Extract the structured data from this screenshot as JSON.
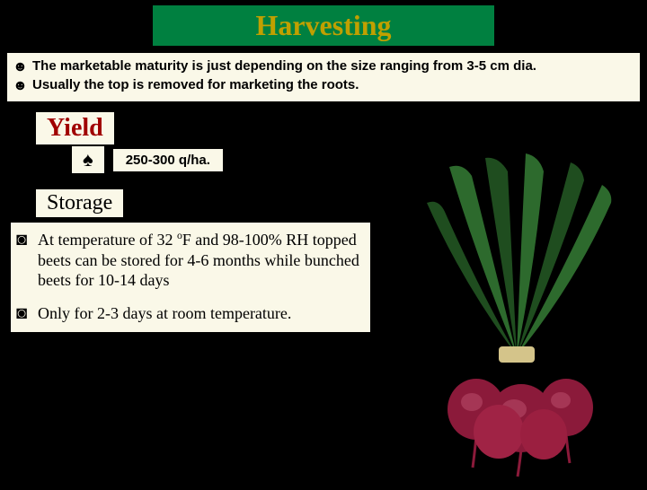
{
  "title": "Harvesting",
  "title_bg": "#008040",
  "title_color": "#c0a000",
  "box_bg": "#faf8e8",
  "harvest": {
    "bullet": "☻",
    "items": [
      "The marketable maturity is just depending on the size ranging from 3-5 cm dia.",
      "Usually the top is removed for marketing the roots."
    ]
  },
  "yield": {
    "title": "Yield",
    "title_color": "#a00000",
    "bullet": "♠",
    "value": "250-300 q/ha."
  },
  "storage": {
    "title": "Storage",
    "bullet": "◙",
    "items_html": [
      "At temperature of 32 <span class='sup'>o</span>F and 98-100% RH topped beets can be stored for 4-6 months while bunched beets for 10-14 days",
      "Only for 2-3 days at room temperature."
    ]
  },
  "image": {
    "leaf_color": "#2d6a2d",
    "leaf_dark": "#1f4d1f",
    "beet_color": "#8b1a3a",
    "beet_highlight": "#b84a68",
    "binding": "#d4c48a"
  }
}
